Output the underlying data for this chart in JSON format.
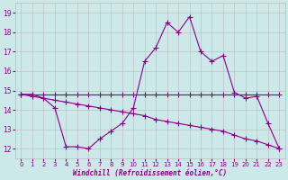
{
  "xlabel": "Windchill (Refroidissement éolien,°C)",
  "bg_color": "#cce8e8",
  "line_color": "#880088",
  "grid_color": "#bbbbbb",
  "xlim_min": -0.5,
  "xlim_max": 23.5,
  "ylim_min": 11.5,
  "ylim_max": 19.5,
  "xticks": [
    0,
    1,
    2,
    3,
    4,
    5,
    6,
    7,
    8,
    9,
    10,
    11,
    12,
    13,
    14,
    15,
    16,
    17,
    18,
    19,
    20,
    21,
    22,
    23
  ],
  "yticks": [
    12,
    13,
    14,
    15,
    16,
    17,
    18,
    19
  ],
  "line1_x": [
    0,
    1,
    2,
    3,
    4,
    5,
    6,
    7,
    8,
    9,
    10,
    11,
    12,
    13,
    14,
    15,
    16,
    17,
    18,
    19,
    20,
    21,
    22,
    23
  ],
  "line1_y": [
    14.8,
    14.8,
    14.6,
    14.1,
    12.1,
    12.1,
    12.0,
    12.5,
    12.9,
    13.3,
    14.1,
    16.5,
    17.2,
    18.5,
    18.0,
    18.8,
    17.0,
    16.5,
    16.8,
    14.9,
    14.6,
    14.7,
    13.3,
    12.0
  ],
  "line2_x": [
    0,
    1,
    2,
    3,
    4,
    5,
    6,
    7,
    8,
    9,
    10,
    11,
    12,
    13,
    14,
    15,
    16,
    17,
    18,
    19,
    20,
    21,
    22,
    23
  ],
  "line2_y": [
    14.8,
    14.8,
    14.8,
    14.8,
    14.8,
    14.8,
    14.8,
    14.8,
    14.8,
    14.8,
    14.8,
    14.8,
    14.8,
    14.8,
    14.8,
    14.8,
    14.8,
    14.8,
    14.8,
    14.8,
    14.8,
    14.8,
    14.8,
    14.8
  ],
  "line3_x": [
    0,
    1,
    2,
    3,
    4,
    5,
    6,
    7,
    8,
    9,
    10,
    11,
    12,
    13,
    14,
    15,
    16,
    17,
    18,
    19,
    20,
    21,
    22,
    23
  ],
  "line3_y": [
    14.8,
    14.7,
    14.6,
    14.5,
    14.4,
    14.3,
    14.2,
    14.1,
    14.0,
    13.9,
    13.8,
    13.7,
    13.5,
    13.4,
    13.3,
    13.2,
    13.1,
    13.0,
    12.9,
    12.7,
    12.5,
    12.4,
    12.2,
    12.0
  ],
  "tick_fontsize": 5.0,
  "xlabel_fontsize": 5.5,
  "marker_size": 2.0,
  "line_width": 0.8
}
